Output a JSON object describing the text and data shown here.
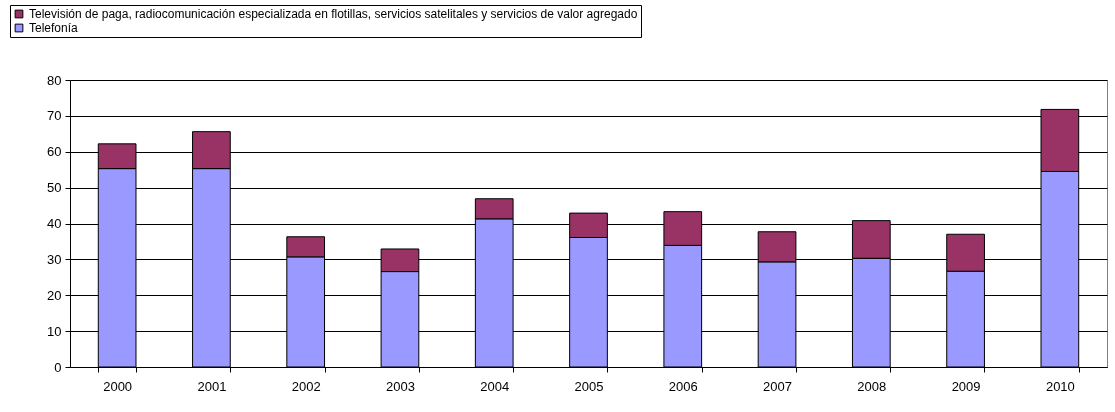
{
  "chart_data": {
    "type": "bar",
    "stacked": true,
    "categories": [
      "2000",
      "2001",
      "2002",
      "2003",
      "2004",
      "2005",
      "2006",
      "2007",
      "2008",
      "2009",
      "2010"
    ],
    "series": [
      {
        "name": "Telefonía",
        "color": "#9999ff",
        "values": [
          55.3,
          55.3,
          30.7,
          26.6,
          41.3,
          36.1,
          33.9,
          29.3,
          30.3,
          26.7,
          54.5
        ]
      },
      {
        "name": "Televisión de paga, radiocomunicación especializada en flotillas, servicios satelitales y servicios de valor agregado",
        "color": "#993366",
        "values": [
          6.9,
          10.3,
          5.6,
          6.3,
          5.6,
          6.8,
          9.4,
          8.4,
          10.5,
          10.3,
          17.3
        ]
      }
    ],
    "ylim": [
      0,
      80
    ],
    "yticks": [
      0,
      10,
      20,
      30,
      40,
      50,
      60,
      70,
      80
    ],
    "grid": "y",
    "legend": "top"
  }
}
